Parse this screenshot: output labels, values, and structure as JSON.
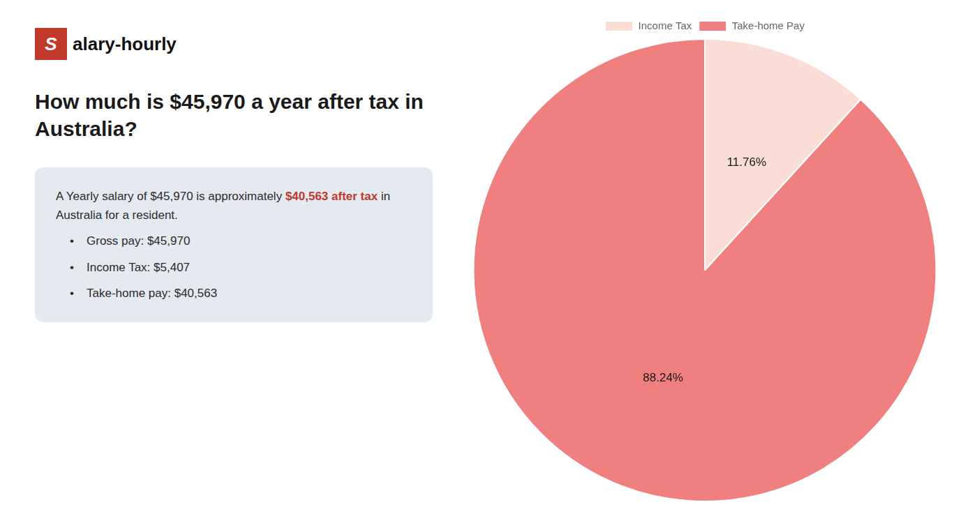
{
  "chart_data": {
    "type": "pie",
    "title": [
      "How much is $45,970 a year after tax in",
      "Australia?"
    ],
    "annotations": [
      [
        {
          "text": "S",
          "color": "#c0392b"
        },
        {
          "text": "alary-hourly"
        }
      ],
      [
        {
          "text": "A Yearly salary of $45,970 is approximately "
        },
        {
          "text": "$40,563 after tax",
          "color": "#c0392b"
        },
        {
          "text": " in"
        }
      ],
      [
        {
          "text": "Australia for a resident."
        }
      ],
      [
        {
          "text": "•"
        },
        {
          "text": "Gross pay: $45,970"
        }
      ],
      [
        {
          "text": "•"
        },
        {
          "text": "Income Tax: $5,407"
        }
      ],
      [
        {
          "text": "•"
        },
        {
          "text": "Take-home pay: $40,563"
        }
      ]
    ],
    "categories": [
      "Income Tax",
      "Take-home Pay"
    ],
    "values": [
      11.76,
      88.24
    ],
    "value_labels": [
      "11.76%",
      "88.24%"
    ],
    "colors": [
      "#faddd4",
      "#f08080"
    ],
    "data_labels": true,
    "legend": "top"
  }
}
